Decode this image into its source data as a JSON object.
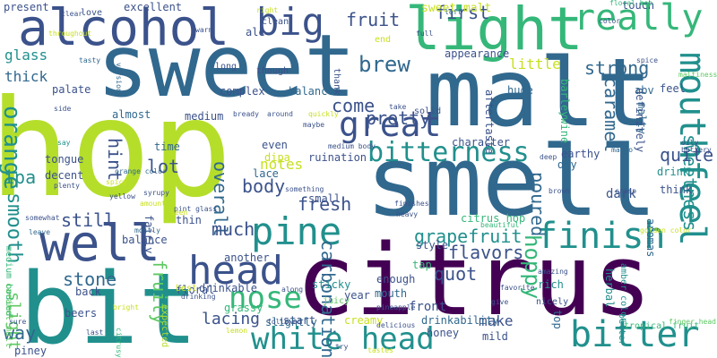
{
  "palette": {
    "deep_purple": "#440154",
    "indigo": "#3b528b",
    "blue": "#31688e",
    "teal": "#21908d",
    "sea_green": "#35b779",
    "green": "#5ec962",
    "lime": "#b5de2b",
    "yellow_green": "#c8e020",
    "light_grey": "#9fa3a8"
  },
  "words": [
    "hop",
    "sweet",
    "malt",
    "smell",
    "citrus",
    "bit",
    "light",
    "alcohol",
    "really",
    "well",
    "head",
    "white head",
    "finish",
    "bitter",
    "mouthfeel",
    "pine",
    "big",
    "great",
    "nose",
    "brew",
    "orange",
    "smooth",
    "bitterness",
    "grapefruit",
    "carbonation",
    "first",
    "caramel",
    "sweetness",
    "fruit",
    "hoppy",
    "pretty",
    "come",
    "strong",
    "little",
    "sweet malt",
    "glass",
    "thick",
    "ipa",
    "still",
    "slight",
    "stone",
    "way",
    "lacing",
    "body",
    "overall",
    "fruity",
    "lot",
    "much",
    "hint",
    "fresh",
    "notes",
    "flavors",
    "quot",
    "poured",
    "quite",
    "make",
    "front",
    "citrus hop",
    "dark",
    "earthy",
    "definitely",
    "palate",
    "appearance",
    "almost",
    "medium",
    "complex",
    "balanced",
    "ruination",
    "character",
    "drink",
    "aftertaste",
    "huge",
    "malty",
    "abv",
    "feel",
    "barleywine",
    "even",
    "tongue",
    "decent",
    "time",
    "dipa",
    "lace",
    "small",
    "sticky",
    "juicy",
    "enough",
    "tap",
    "style",
    "dry",
    "herbal",
    "rich",
    "mouth",
    "drinkability",
    "honey",
    "mild",
    "creamy",
    "start",
    "drinkable",
    "grassy",
    "another",
    "back",
    "balance",
    "floral",
    "thin",
    "fairly",
    "slightly",
    "year",
    "top",
    "think",
    "aromas",
    "amber color",
    "better",
    "beers",
    "piney",
    "medium bodied",
    "caramel malt",
    "expected",
    "best",
    "tropical fruit",
    "nicely",
    "finger head",
    "though",
    "thank",
    "end",
    "full",
    "present",
    "excellent",
    "clean",
    "ale",
    "touch",
    "floral hop",
    "maltiness",
    "love",
    "right",
    "solid",
    "around",
    "long",
    "tasty",
    "version",
    "citrusy",
    "last",
    "sure",
    "bright",
    "mostly",
    "orange color",
    "spicy",
    "yellow",
    "amount",
    "syrupy",
    "plenty",
    "leave",
    "somewhat",
    "say",
    "pint glass",
    "bready",
    "side",
    "quickly",
    "maybe",
    "warm",
    "oily",
    "mango",
    "crisp",
    "golden color",
    "brown",
    "spice",
    "buttery",
    "left",
    "color",
    "clear",
    "deep",
    "finishes",
    "beautiful",
    "followed",
    "delicious",
    "something",
    "heavy",
    "seen",
    "pineapple",
    "amazing",
    "favorite",
    "give",
    "try",
    "tastes",
    "lemon",
    "along",
    "drinking",
    "take",
    "medium body",
    "throughout",
    "look"
  ]
}
